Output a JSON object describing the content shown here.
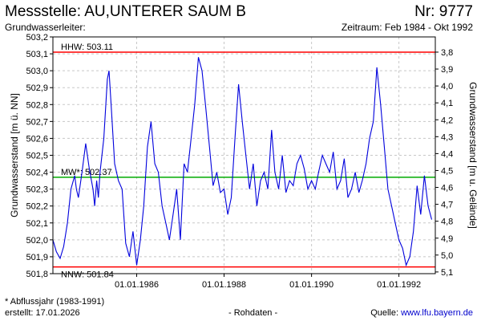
{
  "header": {
    "title_left": "Messstelle: AU,UNTERER SAUM B",
    "title_right": "Nr: 9777",
    "subtitle_left": "Grundwasserleiter:",
    "subtitle_right": "Zeitraum: Feb 1984 - Okt 1992"
  },
  "footer": {
    "note": "* Abflussjahr (1983-1991)",
    "created": "erstellt:  17.01.2026",
    "raw": "- Rohdaten -",
    "source_prefix": "Quelle: ",
    "source_link": "www.lfu.bayern.de"
  },
  "colors": {
    "series": "#0000dd",
    "hhw": "#ff0000",
    "nnw": "#ff0000",
    "mw": "#00aa00",
    "grid": "#c8c8c8"
  },
  "chart_data": {
    "type": "line",
    "ylabel_left": "Grundwasserstand [m ü. NN]",
    "ylabel_right": "Grundwasserstand [m u. Gelände]",
    "xlim": [
      "1984-02-01",
      "1992-10-31"
    ],
    "ylim": [
      501.8,
      503.2
    ],
    "y_ticks": [
      "501,8",
      "501,9",
      "502,0",
      "502,1",
      "502,2",
      "502,3",
      "502,4",
      "502,5",
      "502,6",
      "502,7",
      "502,8",
      "502,9",
      "503,0",
      "503,1",
      "503,2"
    ],
    "y_ticks_right": [
      "3,8",
      "3,9",
      "4,0",
      "4,1",
      "4,2",
      "4,3",
      "4,4",
      "4,5",
      "4,6",
      "4,7",
      "4,8",
      "4,9",
      "5,0",
      "5,1"
    ],
    "x_ticks": [
      "01.01.1986",
      "01.01.1988",
      "01.01.1990",
      "01.01.1992"
    ],
    "grid": true,
    "reference_lines": [
      {
        "label": "HHW: 503.11",
        "value": 503.11
      },
      {
        "label": "MW*: 502.37",
        "value": 502.37
      },
      {
        "label": "NNW: 501.84",
        "value": 501.84
      }
    ],
    "series": [
      {
        "x": [
          "1984-02-01",
          "1984-03-01",
          "1984-04-01",
          "1984-05-01",
          "1984-06-01",
          "1984-07-01",
          "1984-08-01",
          "1984-08-15",
          "1984-09-01",
          "1984-10-01",
          "1984-11-01",
          "1984-12-01",
          "1985-01-01",
          "1985-01-15",
          "1985-02-01",
          "1985-02-15",
          "1985-03-01",
          "1985-04-01",
          "1985-05-01",
          "1985-05-15",
          "1985-06-01",
          "1985-07-01",
          "1985-08-01",
          "1985-09-01",
          "1985-09-15",
          "1985-10-01",
          "1985-11-01",
          "1985-12-01",
          "1986-01-01",
          "1986-02-01",
          "1986-03-01",
          "1986-04-01",
          "1986-05-01",
          "1986-06-01",
          "1986-07-01",
          "1986-08-01",
          "1986-09-01",
          "1986-10-01",
          "1986-11-01",
          "1986-12-01",
          "1987-01-01",
          "1987-02-01",
          "1987-03-01",
          "1987-04-01",
          "1987-05-01",
          "1987-06-01",
          "1987-07-01",
          "1987-08-01",
          "1987-09-01",
          "1987-10-01",
          "1987-11-01",
          "1987-12-01",
          "1988-01-01",
          "1988-02-01",
          "1988-03-01",
          "1988-04-01",
          "1988-05-01",
          "1988-06-01",
          "1988-07-01",
          "1988-08-01",
          "1988-09-01",
          "1988-10-01",
          "1988-11-01",
          "1988-12-01",
          "1989-01-01",
          "1989-02-01",
          "1989-03-01",
          "1989-04-01",
          "1989-05-01",
          "1989-06-01",
          "1989-07-01",
          "1989-08-01",
          "1989-09-01",
          "1989-10-01",
          "1989-11-01",
          "1989-12-01",
          "1990-01-01",
          "1990-02-01",
          "1990-03-01",
          "1990-04-01",
          "1990-05-01",
          "1990-06-01",
          "1990-07-01",
          "1990-08-01",
          "1990-09-01",
          "1990-10-01",
          "1990-11-01",
          "1990-12-01",
          "1991-01-01",
          "1991-02-01",
          "1991-03-01",
          "1991-04-01",
          "1991-05-01",
          "1991-06-01",
          "1991-07-01",
          "1991-08-01",
          "1991-09-01",
          "1991-10-01",
          "1991-11-01",
          "1991-12-01",
          "1992-01-01",
          "1992-02-01",
          "1992-03-01",
          "1992-04-01",
          "1992-05-01",
          "1992-06-01",
          "1992-07-01",
          "1992-08-01",
          "1992-09-01",
          "1992-10-01"
        ],
        "y": [
          502.0,
          501.93,
          501.89,
          501.96,
          502.1,
          502.3,
          502.38,
          502.3,
          502.25,
          502.4,
          502.57,
          502.42,
          502.3,
          502.2,
          502.35,
          502.25,
          502.4,
          502.6,
          502.95,
          503.0,
          502.8,
          502.45,
          502.35,
          502.3,
          502.15,
          501.98,
          501.9,
          502.05,
          501.85,
          502.0,
          502.2,
          502.55,
          502.7,
          502.45,
          502.4,
          502.2,
          502.1,
          502.0,
          502.15,
          502.3,
          502.0,
          502.45,
          502.4,
          502.6,
          502.8,
          503.08,
          503.0,
          502.78,
          502.55,
          502.32,
          502.4,
          502.28,
          502.3,
          502.15,
          502.25,
          502.6,
          502.92,
          502.7,
          502.5,
          502.3,
          502.45,
          502.2,
          502.35,
          502.4,
          502.3,
          502.65,
          502.4,
          502.3,
          502.5,
          502.28,
          502.35,
          502.32,
          502.45,
          502.5,
          502.42,
          502.3,
          502.35,
          502.3,
          502.4,
          502.5,
          502.45,
          502.4,
          502.52,
          502.3,
          502.35,
          502.48,
          502.25,
          502.3,
          502.4,
          502.28,
          502.35,
          502.45,
          502.6,
          502.7,
          503.02,
          502.8,
          502.55,
          502.3,
          502.2,
          502.1,
          502.0,
          501.95,
          501.85,
          501.9,
          502.05,
          502.32,
          502.15,
          502.38,
          502.2,
          502.12
        ]
      }
    ]
  }
}
